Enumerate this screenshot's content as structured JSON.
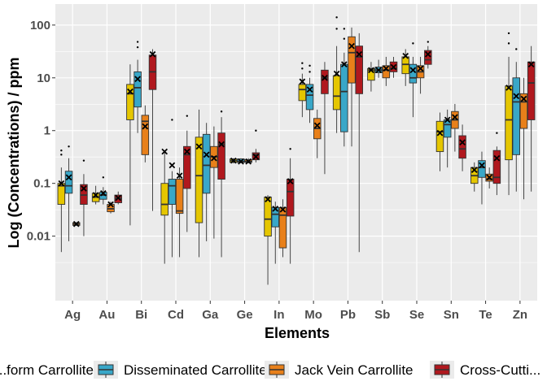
{
  "chart_data": {
    "type": "boxplot",
    "xlabel": "Elements",
    "ylabel": "Log (Concentrations) / ppm",
    "yscale": "log10",
    "ylim": [
      0.0006,
      250
    ],
    "yticks": [
      0.01,
      0.1,
      1,
      10,
      100
    ],
    "ytick_labels": [
      "0.01",
      "0.1",
      "1",
      "10",
      "100"
    ],
    "grid": true,
    "legend_position": "bottom",
    "categories": [
      "Ag",
      "Au",
      "Bi",
      "Cd",
      "Ga",
      "Ge",
      "In",
      "Mo",
      "Pb",
      "Sb",
      "Se",
      "Sn",
      "Te",
      "Zn"
    ],
    "series": [
      {
        "name": "Stratiform Carrollite",
        "color": "#E5C600",
        "legend_label": "...form Carrollite",
        "boxes": [
          {
            "min": 0.005,
            "q1": 0.04,
            "median": 0.09,
            "q3": 0.1,
            "max": 0.2,
            "mean": 0.1,
            "outliers": [
              0.35,
              0.42
            ]
          },
          {
            "min": 0.04,
            "q1": 0.045,
            "median": 0.055,
            "q3": 0.065,
            "max": 0.09,
            "mean": 0.06,
            "outliers": []
          },
          {
            "min": 0.016,
            "q1": 1.6,
            "median": 5.0,
            "q3": 7.5,
            "max": 18,
            "mean": 5.5,
            "outliers": []
          },
          {
            "min": 0.003,
            "q1": 0.025,
            "median": 0.04,
            "q3": 0.1,
            "max": 0.4,
            "mean": 0.4,
            "outliers": []
          },
          {
            "min": 0.004,
            "q1": 0.018,
            "median": 0.14,
            "q3": 0.75,
            "max": 2.5,
            "mean": 0.5,
            "outliers": []
          },
          {
            "min": 0.24,
            "q1": 0.25,
            "median": 0.27,
            "q3": 0.29,
            "max": 0.3,
            "mean": 0.27,
            "outliers": []
          },
          {
            "min": 0.0012,
            "q1": 0.01,
            "median": 0.021,
            "q3": 0.055,
            "max": 0.06,
            "mean": 0.05,
            "outliers": []
          },
          {
            "min": 1.8,
            "q1": 3.7,
            "median": 6.0,
            "q3": 7.5,
            "max": 12,
            "mean": 8.5,
            "outliers": [
              15,
              19
            ]
          },
          {
            "min": 0.9,
            "q1": 2.5,
            "median": 4.5,
            "q3": 11,
            "max": 40,
            "mean": 12,
            "outliers": [
              85,
              140
            ]
          },
          {
            "min": 5.5,
            "q1": 9,
            "median": 14,
            "q3": 15,
            "max": 20,
            "mean": 14,
            "outliers": []
          },
          {
            "min": 7,
            "q1": 12,
            "median": 18,
            "q3": 25,
            "max": 35,
            "mean": 26,
            "outliers": []
          },
          {
            "min": 0.17,
            "q1": 0.4,
            "median": 0.95,
            "q3": 1.5,
            "max": 2.2,
            "mean": 0.9,
            "outliers": []
          },
          {
            "min": 0.07,
            "q1": 0.1,
            "median": 0.14,
            "q3": 0.2,
            "max": 0.25,
            "mean": 0.18,
            "outliers": []
          },
          {
            "min": 0.06,
            "q1": 0.28,
            "median": 1.6,
            "q3": 7,
            "max": 25,
            "mean": 6.5,
            "outliers": [
              45,
              70
            ]
          }
        ]
      },
      {
        "name": "Disseminated Carrollite",
        "color": "#39A7C8",
        "legend_label": "Disseminated Carrollite",
        "boxes": [
          {
            "min": 0.008,
            "q1": 0.065,
            "median": 0.09,
            "q3": 0.17,
            "max": 0.3,
            "mean": 0.13,
            "outliers": [
              0.5
            ]
          },
          {
            "min": 0.04,
            "q1": 0.05,
            "median": 0.06,
            "q3": 0.068,
            "max": 0.085,
            "mean": 0.065,
            "outliers": [
              0.13
            ]
          },
          {
            "min": 0.9,
            "q1": 2.8,
            "median": 6.5,
            "q3": 13,
            "max": 22,
            "mean": 9.5,
            "outliers": [
              38,
              48
            ]
          },
          {
            "min": 0.004,
            "q1": 0.04,
            "median": 0.09,
            "q3": 0.12,
            "max": 0.17,
            "mean": 0.22,
            "outliers": [
              1.6
            ]
          },
          {
            "min": 0.008,
            "q1": 0.065,
            "median": 0.22,
            "q3": 0.85,
            "max": 1.4,
            "mean": 0.35,
            "outliers": []
          },
          {
            "min": 0.24,
            "q1": 0.25,
            "median": 0.26,
            "q3": 0.29,
            "max": 0.3,
            "mean": 0.26,
            "outliers": []
          },
          {
            "min": 0.003,
            "q1": 0.015,
            "median": 0.026,
            "q3": 0.035,
            "max": 0.045,
            "mean": 0.033,
            "outliers": []
          },
          {
            "min": 1.4,
            "q1": 2.5,
            "median": 4.7,
            "q3": 7.5,
            "max": 10,
            "mean": 6.0,
            "outliers": [
              13,
              17
            ]
          },
          {
            "min": 0.5,
            "q1": 0.95,
            "median": 5.5,
            "q3": 18,
            "max": 30,
            "mean": 18,
            "outliers": [
              55,
              85
            ]
          },
          {
            "min": 10,
            "q1": 12.5,
            "median": 14,
            "q3": 16,
            "max": 22,
            "mean": 14,
            "outliers": []
          },
          {
            "min": 1.8,
            "q1": 8,
            "median": 10,
            "q3": 18,
            "max": 25,
            "mean": 14,
            "outliers": [
              45
            ]
          },
          {
            "min": 0.2,
            "q1": 0.75,
            "median": 1.3,
            "q3": 1.6,
            "max": 2.5,
            "mean": 1.6,
            "outliers": []
          },
          {
            "min": 0.04,
            "q1": 0.13,
            "median": 0.2,
            "q3": 0.27,
            "max": 0.4,
            "mean": 0.22,
            "outliers": []
          },
          {
            "min": 0.07,
            "q1": 0.35,
            "median": 3.5,
            "q3": 10,
            "max": 20,
            "mean": 4.5,
            "outliers": [
              35
            ]
          }
        ]
      },
      {
        "name": "Jack Vein Carrollite",
        "color": "#E8801A",
        "legend_label": "Jack Vein Carrollite",
        "boxes": [
          {
            "min": 0.016,
            "q1": 0.016,
            "median": 0.017,
            "q3": 0.018,
            "max": 0.018,
            "mean": 0.017,
            "outliers": []
          },
          {
            "min": 0.027,
            "q1": 0.029,
            "median": 0.033,
            "q3": 0.04,
            "max": 0.045,
            "mean": 0.04,
            "outliers": []
          },
          {
            "min": 0.25,
            "q1": 0.35,
            "median": 1.5,
            "q3": 1.95,
            "max": 3,
            "mean": 1.2,
            "outliers": []
          },
          {
            "min": 0.004,
            "q1": 0.027,
            "median": 0.03,
            "q3": 0.12,
            "max": 0.2,
            "mean": 0.14,
            "outliers": []
          },
          {
            "min": 0.009,
            "q1": 0.2,
            "median": 0.32,
            "q3": 0.5,
            "max": 1.2,
            "mean": 0.3,
            "outliers": []
          },
          {
            "min": 0.24,
            "q1": 0.25,
            "median": 0.26,
            "q3": 0.28,
            "max": 0.3,
            "mean": 0.26,
            "outliers": []
          },
          {
            "min": 0.004,
            "q1": 0.006,
            "median": 0.025,
            "q3": 0.035,
            "max": 0.05,
            "mean": 0.032,
            "outliers": []
          },
          {
            "min": 0.3,
            "q1": 0.7,
            "median": 1.1,
            "q3": 1.7,
            "max": 2.5,
            "mean": 1.25,
            "outliers": []
          },
          {
            "min": 0.5,
            "q1": 8,
            "median": 30,
            "q3": 60,
            "max": 90,
            "mean": 40,
            "outliers": []
          },
          {
            "min": 7,
            "q1": 10,
            "median": 14,
            "q3": 17,
            "max": 25,
            "mean": 15,
            "outliers": []
          },
          {
            "min": 5,
            "q1": 10,
            "median": 13,
            "q3": 17,
            "max": 25,
            "mean": 15,
            "outliers": []
          },
          {
            "min": 0.4,
            "q1": 1.1,
            "median": 1.6,
            "q3": 2.3,
            "max": 3.2,
            "mean": 1.8,
            "outliers": []
          },
          {
            "min": 0.08,
            "q1": 0.11,
            "median": 0.12,
            "q3": 0.15,
            "max": 0.2,
            "mean": 0.13,
            "outliers": []
          },
          {
            "min": 0.05,
            "q1": 1.1,
            "median": 3.5,
            "q3": 5,
            "max": 10,
            "mean": 4.0,
            "outliers": []
          }
        ]
      },
      {
        "name": "Cross-Cutting Carrollite",
        "color": "#B0181E",
        "legend_label": "Cross-Cutti...",
        "boxes": [
          {
            "min": 0.01,
            "q1": 0.04,
            "median": 0.06,
            "q3": 0.095,
            "max": 0.15,
            "mean": 0.08,
            "outliers": [
              0.27
            ]
          },
          {
            "min": 0.04,
            "q1": 0.043,
            "median": 0.052,
            "q3": 0.06,
            "max": 0.07,
            "mean": 0.053,
            "outliers": []
          },
          {
            "min": 0.03,
            "q1": 6,
            "median": 13,
            "q3": 27,
            "max": 35,
            "mean": 28,
            "outliers": []
          },
          {
            "min": 0.012,
            "q1": 0.08,
            "median": 0.35,
            "q3": 0.5,
            "max": 1.0,
            "mean": 0.4,
            "outliers": [
              1.9
            ]
          },
          {
            "min": 0.004,
            "q1": 0.12,
            "median": 0.55,
            "q3": 0.9,
            "max": 1.8,
            "mean": 0.55,
            "outliers": [
              2.3
            ]
          },
          {
            "min": 0.25,
            "q1": 0.28,
            "median": 0.35,
            "q3": 0.38,
            "max": 0.45,
            "mean": 0.32,
            "outliers": [
              1.0
            ]
          },
          {
            "min": 0.003,
            "q1": 0.024,
            "median": 0.07,
            "q3": 0.12,
            "max": 0.3,
            "mean": 0.11,
            "outliers": [
              0.45
            ]
          },
          {
            "min": 0.15,
            "q1": 5,
            "median": 10,
            "q3": 14,
            "max": 20,
            "mean": 10,
            "outliers": []
          },
          {
            "min": 0.005,
            "q1": 5,
            "median": 25,
            "q3": 40,
            "max": 70,
            "mean": 28,
            "outliers": []
          },
          {
            "min": 10,
            "q1": 13,
            "median": 15,
            "q3": 20,
            "max": 25,
            "mean": 16,
            "outliers": []
          },
          {
            "min": 15,
            "q1": 18,
            "median": 22,
            "q3": 33,
            "max": 40,
            "mean": 28,
            "outliers": [
              48
            ]
          },
          {
            "min": 0.17,
            "q1": 0.3,
            "median": 0.45,
            "q3": 0.8,
            "max": 1.3,
            "mean": 0.6,
            "outliers": []
          },
          {
            "min": 0.06,
            "q1": 0.1,
            "median": 0.13,
            "q3": 0.42,
            "max": 0.5,
            "mean": 0.3,
            "outliers": [
              0.9
            ]
          },
          {
            "min": 0.07,
            "q1": 1.6,
            "median": 8,
            "q3": 20,
            "max": 40,
            "mean": 18,
            "outliers": []
          }
        ]
      }
    ]
  }
}
